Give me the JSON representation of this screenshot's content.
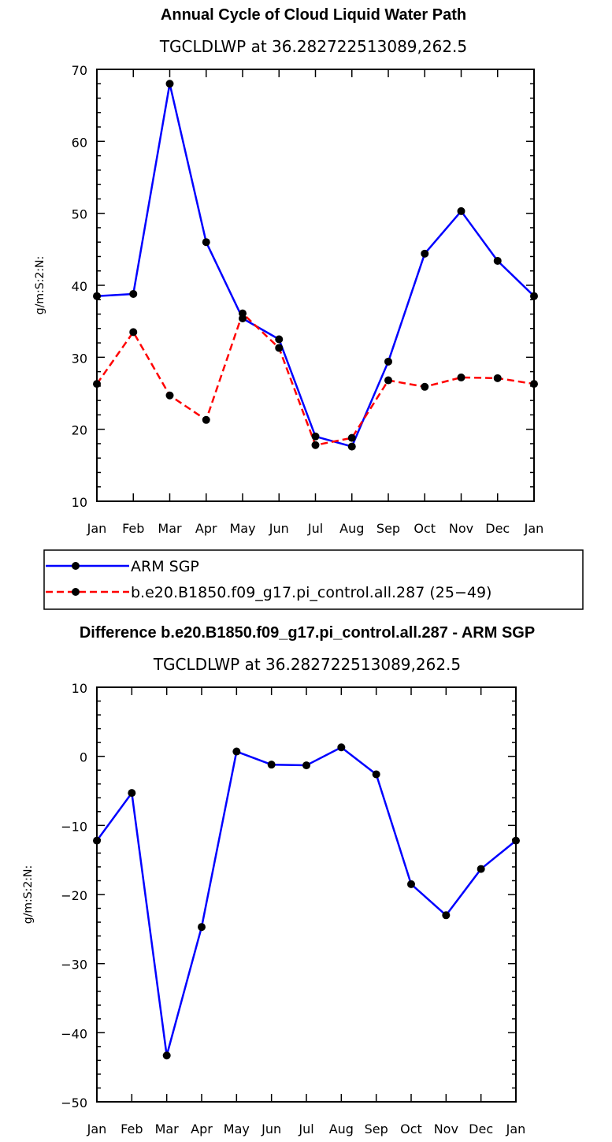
{
  "chart_data": [
    {
      "type": "line",
      "title": "Annual Cycle of Cloud Liquid Water Path",
      "subtitle": "TGCLDLWP at 36.282722513089,262.5",
      "xlabel": "",
      "ylabel": "g/m:S:2:N:",
      "categories": [
        "Jan",
        "Feb",
        "Mar",
        "Apr",
        "May",
        "Jun",
        "Jul",
        "Aug",
        "Sep",
        "Oct",
        "Nov",
        "Dec",
        "Jan"
      ],
      "ylim": [
        10,
        70
      ],
      "yticks": [
        10,
        20,
        30,
        40,
        50,
        60,
        70
      ],
      "series": [
        {
          "name": "ARM SGP",
          "color": "#0000ff",
          "dash": "solid",
          "values": [
            38.5,
            38.8,
            68.0,
            46.0,
            35.4,
            32.5,
            19.0,
            17.6,
            29.4,
            44.4,
            50.3,
            43.4,
            38.5
          ]
        },
        {
          "name": "b.e20.B1850.f09_g17.pi_control.all.287 (25−49)",
          "color": "#ff0000",
          "dash": "dashed",
          "values": [
            26.3,
            33.5,
            24.7,
            21.3,
            36.1,
            31.3,
            17.8,
            18.8,
            26.8,
            25.9,
            27.2,
            27.1,
            26.3
          ]
        }
      ],
      "legend": "bottom"
    },
    {
      "type": "line",
      "title": "Difference b.e20.B1850.f09_g17.pi_control.all.287 - ARM SGP",
      "subtitle": "TGCLDLWP at 36.282722513089,262.5",
      "xlabel": "",
      "ylabel": "g/m:S:2:N:",
      "categories": [
        "Jan",
        "Feb",
        "Mar",
        "Apr",
        "May",
        "Jun",
        "Jul",
        "Aug",
        "Sep",
        "Oct",
        "Nov",
        "Dec",
        "Jan"
      ],
      "ylim": [
        -50,
        10
      ],
      "yticks": [
        -50,
        -40,
        -30,
        -20,
        -10,
        0,
        10
      ],
      "series": [
        {
          "color": "#0000ff",
          "dash": "solid",
          "values": [
            -12.2,
            -5.3,
            -43.3,
            -24.7,
            0.7,
            -1.2,
            -1.3,
            1.3,
            -2.6,
            -18.5,
            -23.0,
            -16.3,
            -12.2
          ]
        }
      ]
    }
  ]
}
